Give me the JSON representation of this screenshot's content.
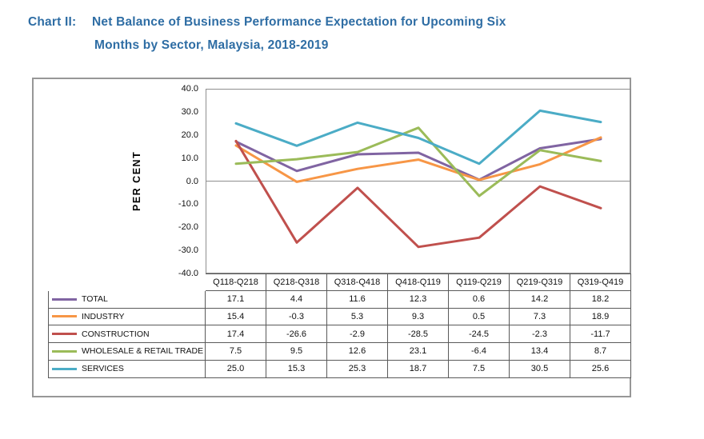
{
  "title": {
    "prefix": "Chart II:",
    "line1": "Net Balance of Business Performance Expectation for Upcoming Six",
    "line2": "Months by Sector, Malaysia, 2018-2019"
  },
  "colors": {
    "title_text": "#2E6DA4",
    "plot_border": "#8E8E8E",
    "zero_line": "#8E8E8E",
    "table_border": "#5A5A5A",
    "frame_border": "#979797"
  },
  "chart_data": {
    "type": "line",
    "title": "Net Balance of Business Performance Expectation for Upcoming Six Months by Sector, Malaysia, 2018-2019",
    "xlabel": "",
    "ylabel": "PER CENT",
    "ylim": [
      -40,
      40
    ],
    "yticks": [
      "40.0",
      "30.0",
      "20.0",
      "10.0",
      "0.0",
      "-10.0",
      "-20.0",
      "-30.0",
      "-40.0"
    ],
    "grid": "zero-line-only",
    "legend_position": "data-table-left",
    "categories": [
      "Q118-Q218",
      "Q218-Q318",
      "Q318-Q418",
      "Q418-Q119",
      "Q119-Q219",
      "Q219-Q319",
      "Q319-Q419"
    ],
    "series": [
      {
        "name": "TOTAL",
        "color": "#8064A2",
        "values": [
          17.1,
          4.4,
          11.6,
          12.3,
          0.6,
          14.2,
          18.2
        ]
      },
      {
        "name": "INDUSTRY",
        "color": "#F79646",
        "values": [
          15.4,
          -0.3,
          5.3,
          9.3,
          0.5,
          7.3,
          18.9
        ]
      },
      {
        "name": "CONSTRUCTION",
        "color": "#C0504D",
        "values": [
          17.4,
          -26.6,
          -2.9,
          -28.5,
          -24.5,
          -2.3,
          -11.7
        ]
      },
      {
        "name": "WHOLESALE & RETAIL TRADE",
        "color": "#9BBB59",
        "values": [
          7.5,
          9.5,
          12.6,
          23.1,
          -6.4,
          13.4,
          8.7
        ]
      },
      {
        "name": "SERVICES",
        "color": "#4BACC6",
        "values": [
          25.0,
          15.3,
          25.3,
          18.7,
          7.5,
          30.5,
          25.6
        ]
      }
    ]
  }
}
